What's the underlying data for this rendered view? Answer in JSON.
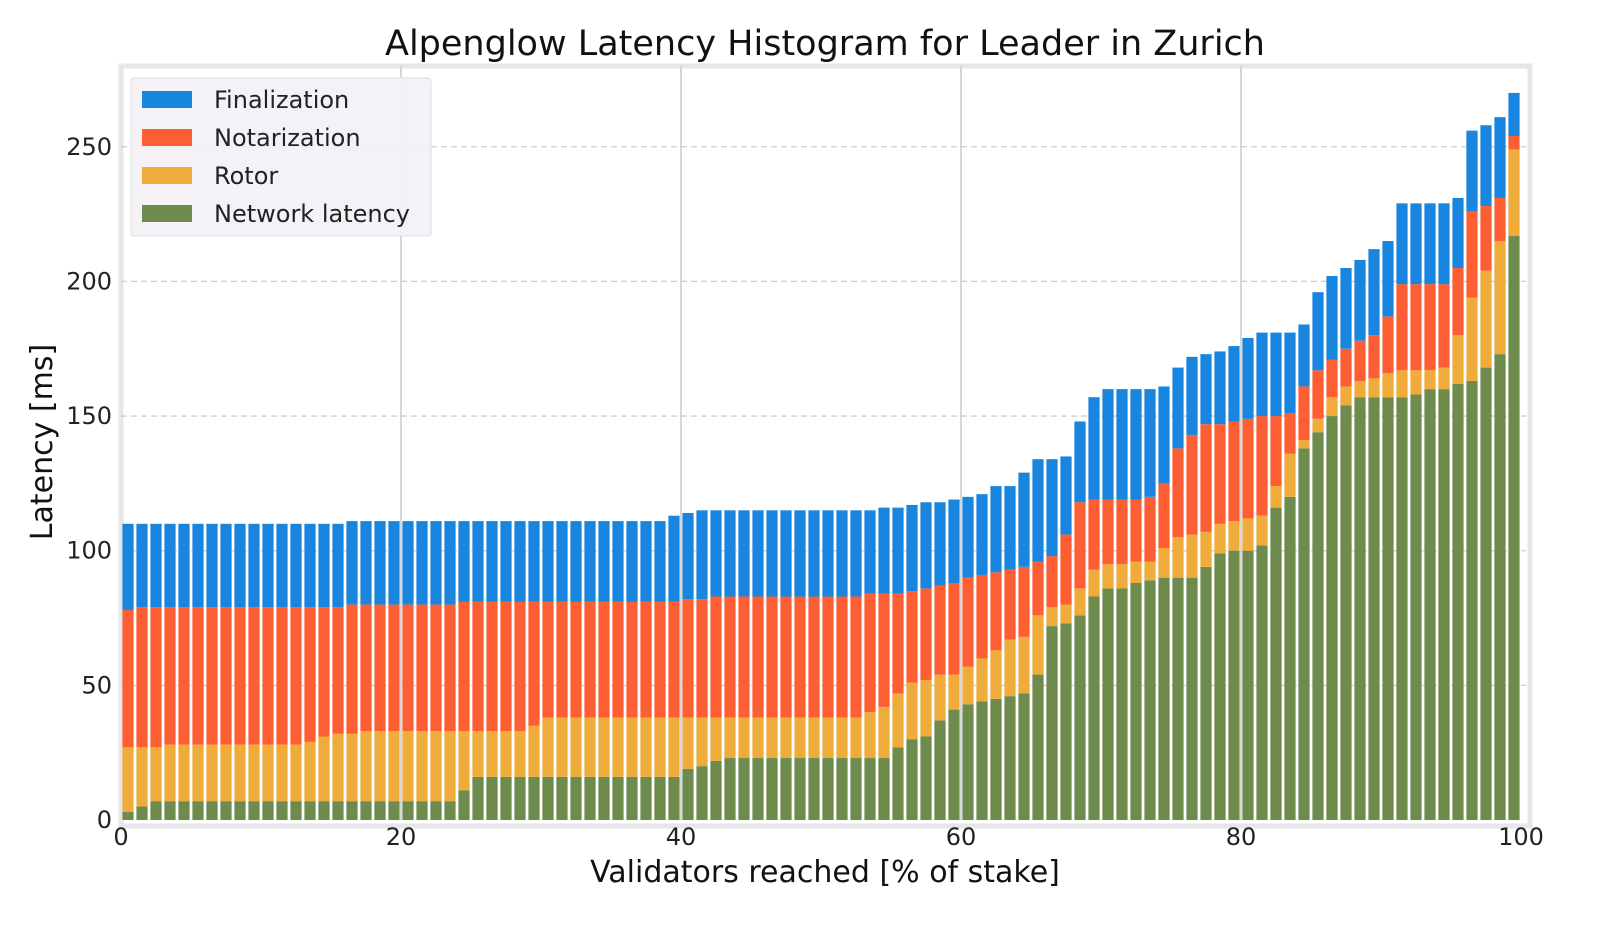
{
  "chart_data": {
    "type": "bar",
    "stacked": true,
    "title": "Alpenglow Latency Histogram for Leader in Zurich",
    "xlabel": "Validators reached [% of stake]",
    "ylabel": "Latency [ms]",
    "xlim": [
      0,
      100
    ],
    "ylim": [
      0,
      280
    ],
    "x_ticks": [
      0,
      20,
      40,
      60,
      80,
      100
    ],
    "y_ticks": [
      0,
      50,
      100,
      150,
      200,
      250
    ],
    "legend_position": "top-left",
    "x": [
      1,
      2,
      3,
      4,
      5,
      6,
      7,
      8,
      9,
      10,
      11,
      12,
      13,
      14,
      15,
      16,
      17,
      18,
      19,
      20,
      21,
      22,
      23,
      24,
      25,
      26,
      27,
      28,
      29,
      30,
      31,
      32,
      33,
      34,
      35,
      36,
      37,
      38,
      39,
      40,
      41,
      42,
      43,
      44,
      45,
      46,
      47,
      48,
      49,
      50,
      51,
      52,
      53,
      54,
      55,
      56,
      57,
      58,
      59,
      60,
      61,
      62,
      63,
      64,
      65,
      66,
      67,
      68,
      69,
      70,
      71,
      72,
      73,
      74,
      75,
      76,
      77,
      78,
      79,
      80,
      81,
      82,
      83,
      84,
      85,
      86,
      87,
      88,
      89,
      90,
      91,
      92,
      93,
      94,
      95,
      96,
      97,
      98,
      99,
      100
    ],
    "series": [
      {
        "name": "Network latency",
        "color": "#6d8b4c",
        "totals": [
          3,
          5,
          7,
          7,
          7,
          7,
          7,
          7,
          7,
          7,
          7,
          7,
          7,
          7,
          7,
          7,
          7,
          7,
          7,
          7,
          7,
          7,
          7,
          7,
          11,
          16,
          16,
          16,
          16,
          16,
          16,
          16,
          16,
          16,
          16,
          16,
          16,
          16,
          16,
          16,
          19,
          20,
          22,
          23,
          23,
          23,
          23,
          23,
          23,
          23,
          23,
          23,
          23,
          23,
          23,
          27,
          30,
          31,
          37,
          41,
          43,
          44,
          45,
          46,
          47,
          54,
          72,
          73,
          76,
          83,
          86,
          86,
          88,
          89,
          90,
          90,
          90,
          94,
          99,
          100,
          100,
          102,
          116,
          120,
          138,
          144,
          150,
          154,
          157,
          157,
          157,
          157,
          158,
          160,
          160,
          162,
          163,
          168,
          173,
          217
        ]
      },
      {
        "name": "Rotor",
        "color": "#efac3a",
        "totals": [
          27,
          27,
          27,
          28,
          28,
          28,
          28,
          28,
          28,
          28,
          28,
          28,
          28,
          29,
          31,
          32,
          32,
          33,
          33,
          33,
          33,
          33,
          33,
          33,
          33,
          33,
          33,
          33,
          33,
          35,
          38,
          38,
          38,
          38,
          38,
          38,
          38,
          38,
          38,
          38,
          38,
          38,
          38,
          38,
          38,
          38,
          38,
          38,
          38,
          38,
          38,
          38,
          38,
          40,
          42,
          47,
          51,
          52,
          54,
          54,
          57,
          60,
          63,
          67,
          68,
          76,
          79,
          80,
          86,
          93,
          95,
          95,
          96,
          96,
          101,
          105,
          106,
          107,
          110,
          111,
          112,
          113,
          124,
          136,
          141,
          149,
          157,
          161,
          163,
          164,
          166,
          167,
          167,
          167,
          168,
          180,
          194,
          204,
          215,
          249
        ]
      },
      {
        "name": "Notarization",
        "color": "#fe5e33",
        "totals": [
          78,
          79,
          79,
          79,
          79,
          79,
          79,
          79,
          79,
          79,
          79,
          79,
          79,
          79,
          79,
          79,
          80,
          80,
          80,
          80,
          80,
          80,
          80,
          80,
          81,
          81,
          81,
          81,
          81,
          81,
          81,
          81,
          81,
          81,
          81,
          81,
          81,
          81,
          81,
          81,
          82,
          82,
          83,
          83,
          83,
          83,
          83,
          83,
          83,
          83,
          83,
          83,
          83,
          84,
          84,
          84,
          85,
          86,
          87,
          88,
          90,
          91,
          92,
          93,
          94,
          96,
          98,
          106,
          118,
          119,
          119,
          119,
          119,
          120,
          125,
          138,
          143,
          147,
          147,
          148,
          149,
          150,
          150,
          151,
          161,
          167,
          171,
          175,
          178,
          180,
          187,
          199,
          199,
          199,
          199,
          205,
          226,
          228,
          231,
          254
        ]
      },
      {
        "name": "Finalization",
        "color": "#1886df",
        "totals": [
          110,
          110,
          110,
          110,
          110,
          110,
          110,
          110,
          110,
          110,
          110,
          110,
          110,
          110,
          110,
          110,
          111,
          111,
          111,
          111,
          111,
          111,
          111,
          111,
          111,
          111,
          111,
          111,
          111,
          111,
          111,
          111,
          111,
          111,
          111,
          111,
          111,
          111,
          111,
          113,
          114,
          115,
          115,
          115,
          115,
          115,
          115,
          115,
          115,
          115,
          115,
          115,
          115,
          115,
          116,
          116,
          117,
          118,
          118,
          119,
          120,
          121,
          124,
          124,
          129,
          134,
          134,
          135,
          148,
          157,
          160,
          160,
          160,
          160,
          161,
          168,
          172,
          173,
          174,
          176,
          179,
          181,
          181,
          181,
          184,
          196,
          202,
          205,
          208,
          212,
          215,
          229,
          229,
          229,
          229,
          231,
          256,
          258,
          261,
          270
        ]
      }
    ],
    "legend_order": [
      "Finalization",
      "Notarization",
      "Rotor",
      "Network latency"
    ]
  }
}
